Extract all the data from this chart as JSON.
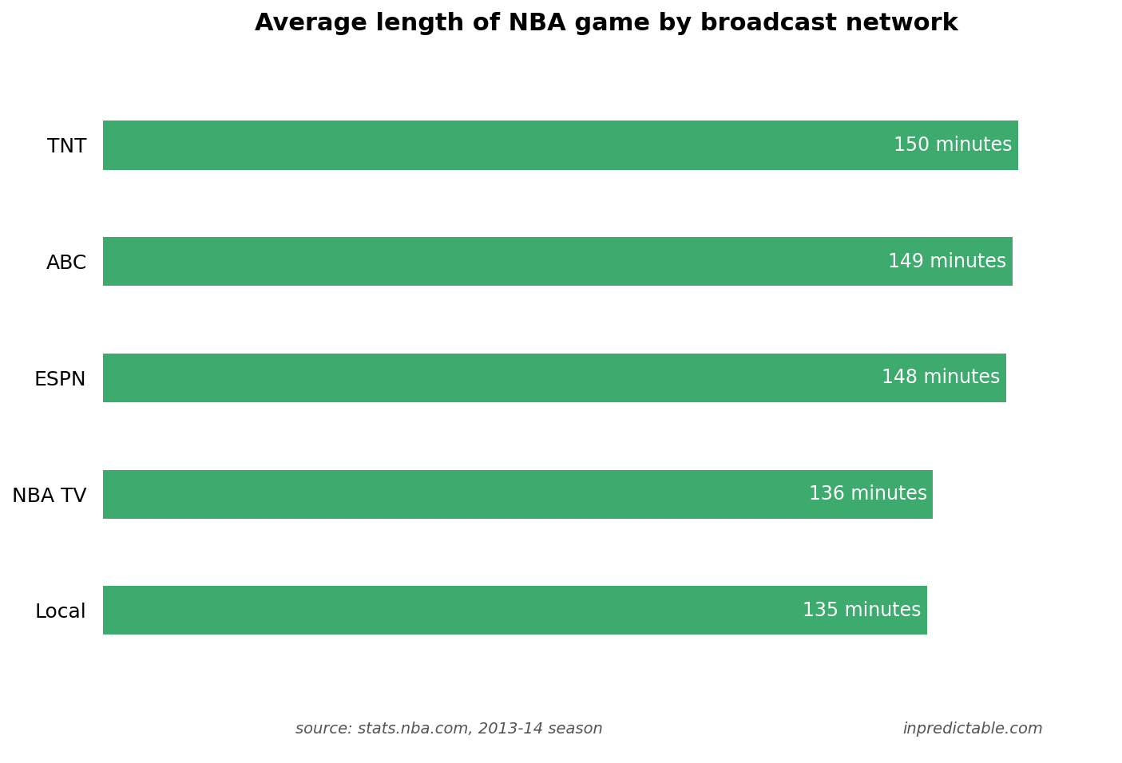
{
  "title": "Average length of NBA game by broadcast network",
  "categories": [
    "TNT",
    "ABC",
    "ESPN",
    "NBA TV",
    "Local"
  ],
  "values": [
    150,
    149,
    148,
    136,
    135
  ],
  "bar_color": "#3daa6e",
  "label_color": "#ffffff",
  "title_fontsize": 22,
  "label_fontsize": 17,
  "bar_height": 0.42,
  "xlim": [
    0,
    165
  ],
  "source_text": "source: stats.nba.com, 2013-14 season",
  "credit_text": "inpredictable.com",
  "bg_color": "#ffffff",
  "footer_fontsize": 14,
  "title_fontweight": "bold",
  "category_fontsize": 18
}
